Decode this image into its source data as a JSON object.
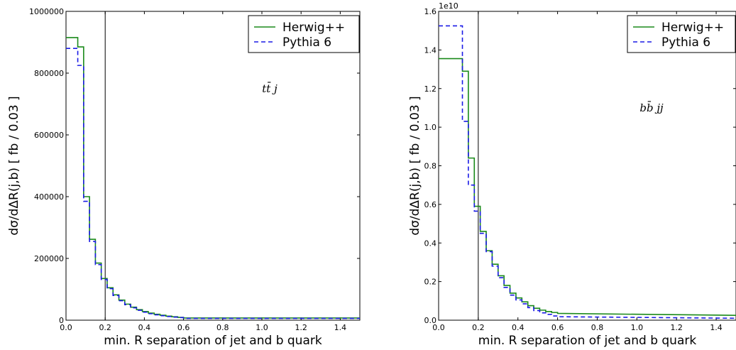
{
  "chart_data": [
    {
      "type": "line",
      "annotation": "tt̄ j",
      "xlabel": "min. R separation of jet and b quark",
      "ylabel": "dσ/dΔR(j,b)  [ fb / 0.03  ]",
      "xlim": [
        0.0,
        1.5
      ],
      "ylim": [
        0,
        1000000
      ],
      "x_ticks": [
        "0.0",
        "0.2",
        "0.4",
        "0.6",
        "0.8",
        "1.0",
        "1.2",
        "1.4"
      ],
      "y_ticks": [
        "0",
        "200000",
        "400000",
        "600000",
        "800000",
        "1000000"
      ],
      "vline_x": 0.2,
      "legend_position": "top-right",
      "bin_edges": [
        0.0,
        0.06,
        0.09,
        0.12,
        0.15,
        0.18,
        0.21,
        0.24,
        0.27,
        0.3,
        0.33,
        0.36,
        0.39,
        0.42,
        0.45,
        0.48,
        0.51,
        0.54,
        0.57,
        0.6,
        1.5
      ],
      "series": [
        {
          "name": "Herwig++",
          "color": "#1a8a1a",
          "style": "solid",
          "values": [
            915000,
            885000,
            400000,
            262000,
            185000,
            135000,
            105000,
            82000,
            65000,
            52000,
            42000,
            34000,
            28000,
            23000,
            19000,
            16000,
            13000,
            11000,
            9000,
            7000
          ]
        },
        {
          "name": "Pythia 6",
          "color": "#1a1ae6",
          "style": "dashed",
          "values": [
            880000,
            825000,
            385000,
            255000,
            180000,
            132000,
            102000,
            80000,
            63000,
            50000,
            40000,
            32000,
            26000,
            21000,
            17500,
            14500,
            12000,
            10000,
            8500,
            6000
          ]
        }
      ]
    },
    {
      "type": "line",
      "annotation": "bb̄ jj",
      "scale_label": "1e10",
      "xlabel": "min. R separation of jet and b quark",
      "ylabel": "dσ/dΔR(j,b)  [ fb / 0.03  ]",
      "xlim": [
        0.0,
        1.5
      ],
      "ylim": [
        0.0,
        1.6
      ],
      "x_ticks": [
        "0.0",
        "0.2",
        "0.4",
        "0.6",
        "0.8",
        "1.0",
        "1.2",
        "1.4"
      ],
      "y_ticks": [
        "0.0",
        "0.2",
        "0.4",
        "0.6",
        "0.8",
        "1.0",
        "1.2",
        "1.4",
        "1.6"
      ],
      "vline_x": 0.2,
      "legend_position": "top-right",
      "bin_edges": [
        0.0,
        0.12,
        0.15,
        0.18,
        0.21,
        0.24,
        0.27,
        0.3,
        0.33,
        0.36,
        0.39,
        0.42,
        0.45,
        0.48,
        0.51,
        0.54,
        0.57,
        0.6,
        1.5
      ],
      "series": [
        {
          "name": "Herwig++",
          "color": "#1a8a1a",
          "style": "solid",
          "values_end": 0.025,
          "values": [
            1.355,
            1.29,
            0.84,
            0.59,
            0.46,
            0.36,
            0.29,
            0.23,
            0.18,
            0.14,
            0.115,
            0.095,
            0.075,
            0.062,
            0.052,
            0.045,
            0.04,
            0.035
          ]
        },
        {
          "name": "Pythia 6",
          "color": "#1a1ae6",
          "style": "dashed",
          "values_end": 0.01,
          "values": [
            1.525,
            1.03,
            0.7,
            0.565,
            0.45,
            0.355,
            0.28,
            0.22,
            0.17,
            0.13,
            0.105,
            0.085,
            0.065,
            0.05,
            0.038,
            0.03,
            0.022,
            0.018
          ]
        }
      ]
    }
  ]
}
